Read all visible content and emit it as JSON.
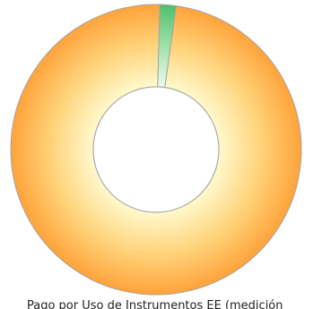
{
  "chart_data": {
    "type": "pie",
    "style": "donut",
    "categories": [
      "",
      ""
    ],
    "values": [
      98.2,
      1.8
    ],
    "colors": {
      "large_slice_outer": "#FFA33A",
      "large_slice_inner": "#FFF7C8",
      "small_slice_outer": "#4EC06A",
      "small_slice_inner": "#E9FAEA",
      "slice_border": "#A5A5A5",
      "background": "#FFFFFF"
    },
    "caption": "Pago por Uso de Instrumentos EE (medición"
  }
}
